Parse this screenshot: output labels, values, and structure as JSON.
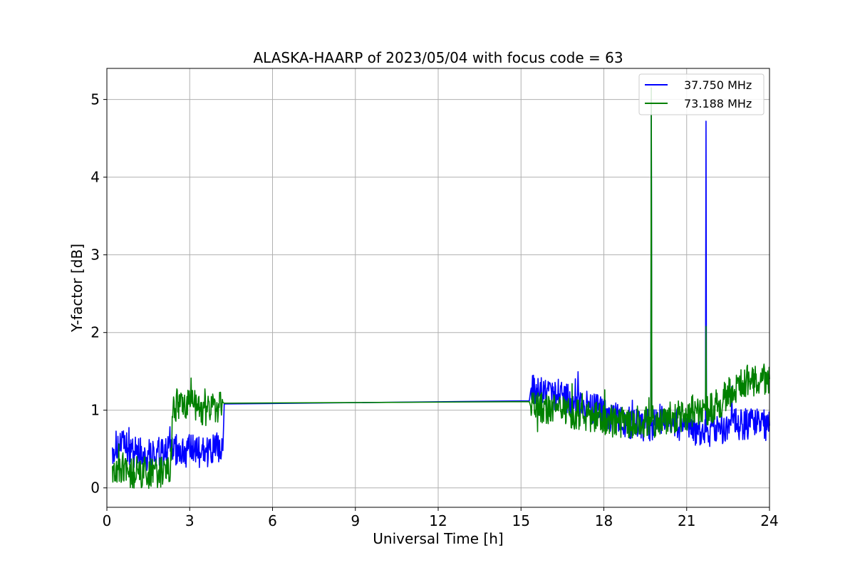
{
  "chart_data": {
    "type": "line",
    "title": "ALASKA-HAARP of 2023/05/04 with focus code = 63",
    "xlabel": "Universal Time [h]",
    "ylabel": "Y-factor [dB]",
    "xlim": [
      0,
      24
    ],
    "ylim": [
      -0.25,
      5.4
    ],
    "xticks": [
      0,
      3,
      6,
      9,
      12,
      15,
      18,
      21,
      24
    ],
    "yticks": [
      0,
      1,
      2,
      3,
      4,
      5
    ],
    "grid": true,
    "legend_position": "top-right",
    "series": [
      {
        "name": "37.750 MHz",
        "color": "#0000ff",
        "x": [
          0.2,
          0.5,
          1.0,
          1.5,
          2.0,
          2.3,
          2.4,
          2.8,
          3.2,
          3.6,
          4.0,
          4.2,
          4.25,
          15.3,
          15.35,
          15.8,
          16.3,
          16.8,
          17.3,
          17.8,
          18.3,
          18.8,
          19.3,
          19.7,
          19.72,
          19.74,
          20.0,
          20.5,
          21.0,
          21.5,
          21.68,
          21.7,
          21.72,
          22.0,
          22.5,
          23.0,
          23.5,
          24.0
        ],
        "y": [
          0.52,
          0.55,
          0.47,
          0.43,
          0.45,
          0.47,
          0.5,
          0.47,
          0.48,
          0.46,
          0.5,
          0.48,
          1.08,
          1.12,
          1.25,
          1.25,
          1.2,
          1.15,
          1.05,
          1.0,
          0.9,
          0.85,
          0.82,
          0.8,
          5.0,
          0.82,
          0.9,
          0.85,
          0.75,
          0.72,
          0.72,
          4.72,
          0.72,
          0.75,
          0.8,
          0.82,
          0.85,
          0.8
        ]
      },
      {
        "name": "73.188 MHz",
        "color": "#008000",
        "x": [
          0.2,
          0.5,
          1.0,
          1.5,
          2.0,
          2.3,
          2.4,
          2.8,
          3.2,
          3.6,
          4.0,
          4.2,
          4.25,
          15.3,
          15.35,
          15.8,
          16.3,
          16.8,
          17.3,
          17.8,
          18.3,
          18.8,
          19.3,
          19.7,
          19.72,
          19.74,
          20.0,
          20.5,
          21.0,
          21.5,
          21.68,
          21.7,
          21.72,
          22.0,
          22.5,
          23.0,
          23.5,
          24.0
        ],
        "y": [
          0.28,
          0.25,
          0.2,
          0.2,
          0.22,
          0.2,
          1.05,
          1.1,
          1.05,
          1.0,
          1.05,
          1.1,
          1.09,
          1.11,
          1.05,
          1.02,
          1.0,
          0.95,
          0.92,
          0.9,
          0.85,
          0.82,
          0.85,
          0.85,
          5.15,
          0.85,
          0.9,
          0.9,
          0.95,
          1.0,
          1.0,
          2.08,
          1.0,
          1.05,
          1.2,
          1.35,
          1.4,
          1.4
        ]
      }
    ]
  }
}
